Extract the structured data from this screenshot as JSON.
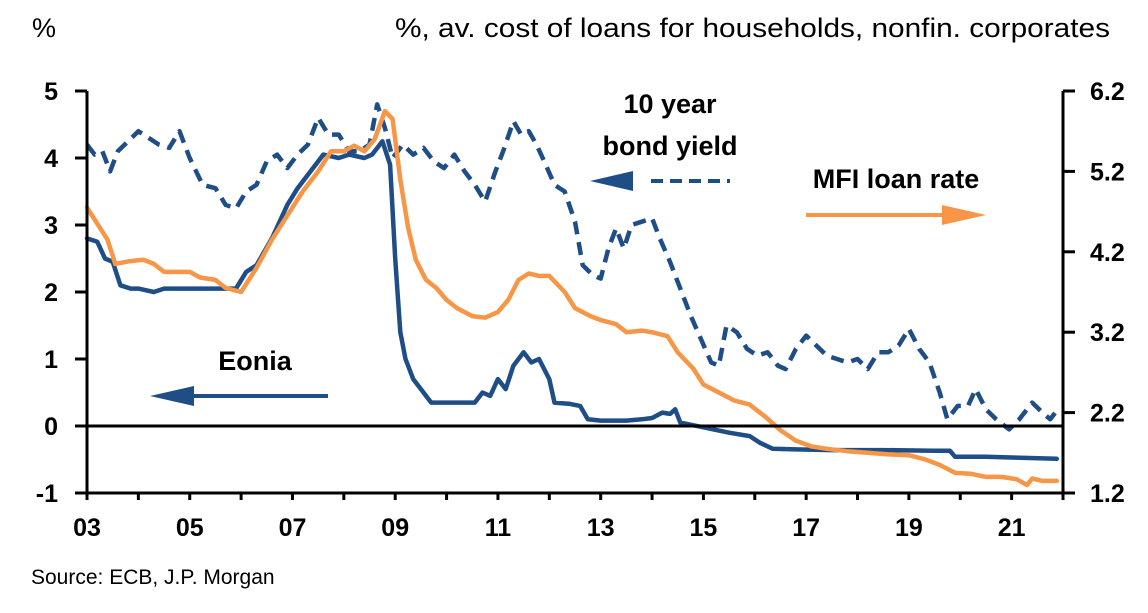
{
  "chart_data": {
    "type": "line",
    "title": "",
    "left_axis_label": "%",
    "right_axis_label": "%, av. cost of loans for households, nonfin. corporates",
    "source": "Source: ECB, J.P. Morgan",
    "xlim": [
      2003.0,
      2022.0
    ],
    "ylim_left": [
      -1,
      5
    ],
    "ylim_right": [
      1.2,
      6.2
    ],
    "x_ticks": [
      2003,
      2004,
      2005,
      2006,
      2007,
      2008,
      2009,
      2010,
      2011,
      2012,
      2013,
      2014,
      2015,
      2016,
      2017,
      2018,
      2019,
      2020,
      2021,
      2022
    ],
    "x_tick_labels": [
      {
        "x": 2003,
        "label": "03"
      },
      {
        "x": 2005,
        "label": "05"
      },
      {
        "x": 2007,
        "label": "07"
      },
      {
        "x": 2009,
        "label": "09"
      },
      {
        "x": 2011,
        "label": "11"
      },
      {
        "x": 2013,
        "label": "13"
      },
      {
        "x": 2015,
        "label": "15"
      },
      {
        "x": 2017,
        "label": "17"
      },
      {
        "x": 2019,
        "label": "19"
      },
      {
        "x": 2021,
        "label": "21"
      }
    ],
    "left_ticks": [
      {
        "v": 5,
        "label": "5"
      },
      {
        "v": 4,
        "label": "4"
      },
      {
        "v": 3,
        "label": "3"
      },
      {
        "v": 2,
        "label": "2"
      },
      {
        "v": 1,
        "label": "1"
      },
      {
        "v": 0,
        "label": "0"
      },
      {
        "v": -1,
        "label": "-1"
      }
    ],
    "right_ticks": [
      {
        "v": 6.2,
        "label": "6.2"
      },
      {
        "v": 5.2,
        "label": "5.2"
      },
      {
        "v": 4.2,
        "label": "4.2"
      },
      {
        "v": 3.2,
        "label": "3.2"
      },
      {
        "v": 2.2,
        "label": "2.2"
      },
      {
        "v": 1.2,
        "label": "1.2"
      }
    ],
    "zero_line": 0,
    "series": [
      {
        "name": "10 year bond yield",
        "axis": "left",
        "style": "dashed",
        "color": "#1f4e87",
        "points": [
          [
            2003.0,
            4.2
          ],
          [
            2003.15,
            4.05
          ],
          [
            2003.3,
            4.1
          ],
          [
            2003.45,
            3.8
          ],
          [
            2003.6,
            4.1
          ],
          [
            2003.8,
            4.25
          ],
          [
            2004.0,
            4.4
          ],
          [
            2004.2,
            4.3
          ],
          [
            2004.4,
            4.2
          ],
          [
            2004.6,
            4.15
          ],
          [
            2004.8,
            4.4
          ],
          [
            2005.0,
            4.0
          ],
          [
            2005.25,
            3.6
          ],
          [
            2005.5,
            3.55
          ],
          [
            2005.7,
            3.3
          ],
          [
            2005.9,
            3.25
          ],
          [
            2006.1,
            3.5
          ],
          [
            2006.3,
            3.6
          ],
          [
            2006.5,
            3.95
          ],
          [
            2006.7,
            4.05
          ],
          [
            2006.9,
            3.85
          ],
          [
            2007.1,
            4.05
          ],
          [
            2007.3,
            4.2
          ],
          [
            2007.5,
            4.6
          ],
          [
            2007.7,
            4.35
          ],
          [
            2007.9,
            4.35
          ],
          [
            2008.1,
            4.1
          ],
          [
            2008.3,
            4.1
          ],
          [
            2008.5,
            4.2
          ],
          [
            2008.65,
            4.8
          ],
          [
            2008.8,
            4.45
          ],
          [
            2008.95,
            4.0
          ],
          [
            2009.15,
            4.2
          ],
          [
            2009.35,
            4.05
          ],
          [
            2009.55,
            4.15
          ],
          [
            2009.75,
            3.95
          ],
          [
            2009.95,
            3.85
          ],
          [
            2010.15,
            4.05
          ],
          [
            2010.35,
            3.8
          ],
          [
            2010.55,
            3.6
          ],
          [
            2010.75,
            3.35
          ],
          [
            2010.95,
            3.8
          ],
          [
            2011.1,
            4.1
          ],
          [
            2011.3,
            4.55
          ],
          [
            2011.45,
            4.35
          ],
          [
            2011.6,
            4.4
          ],
          [
            2011.75,
            4.2
          ],
          [
            2011.9,
            3.95
          ],
          [
            2012.1,
            3.6
          ],
          [
            2012.3,
            3.5
          ],
          [
            2012.5,
            3.05
          ],
          [
            2012.65,
            2.4
          ],
          [
            2012.85,
            2.25
          ],
          [
            2013.0,
            2.2
          ],
          [
            2013.15,
            2.65
          ],
          [
            2013.3,
            2.95
          ],
          [
            2013.45,
            2.65
          ],
          [
            2013.6,
            3.0
          ],
          [
            2013.8,
            3.05
          ],
          [
            2014.0,
            3.1
          ],
          [
            2014.15,
            2.8
          ],
          [
            2014.35,
            2.45
          ],
          [
            2014.55,
            2.05
          ],
          [
            2014.75,
            1.65
          ],
          [
            2014.95,
            1.3
          ],
          [
            2015.15,
            0.95
          ],
          [
            2015.3,
            0.9
          ],
          [
            2015.45,
            1.5
          ],
          [
            2015.65,
            1.4
          ],
          [
            2015.85,
            1.15
          ],
          [
            2016.05,
            1.05
          ],
          [
            2016.25,
            1.1
          ],
          [
            2016.45,
            0.9
          ],
          [
            2016.6,
            0.85
          ],
          [
            2016.8,
            1.15
          ],
          [
            2017.0,
            1.35
          ],
          [
            2017.2,
            1.2
          ],
          [
            2017.4,
            1.05
          ],
          [
            2017.6,
            1.0
          ],
          [
            2017.8,
            0.95
          ],
          [
            2018.0,
            1.0
          ],
          [
            2018.2,
            0.85
          ],
          [
            2018.4,
            1.1
          ],
          [
            2018.6,
            1.1
          ],
          [
            2018.8,
            1.2
          ],
          [
            2019.0,
            1.45
          ],
          [
            2019.2,
            1.15
          ],
          [
            2019.4,
            0.95
          ],
          [
            2019.6,
            0.5
          ],
          [
            2019.75,
            0.1
          ],
          [
            2019.95,
            0.3
          ],
          [
            2020.15,
            0.3
          ],
          [
            2020.3,
            0.55
          ],
          [
            2020.5,
            0.25
          ],
          [
            2020.7,
            0.1
          ],
          [
            2020.95,
            -0.05
          ],
          [
            2021.15,
            0.1
          ],
          [
            2021.4,
            0.35
          ],
          [
            2021.6,
            0.2
          ],
          [
            2021.75,
            0.1
          ],
          [
            2021.85,
            0.2
          ]
        ]
      },
      {
        "name": "Eonia",
        "axis": "left",
        "style": "solid",
        "color": "#1f4e87",
        "points": [
          [
            2003.0,
            2.8
          ],
          [
            2003.2,
            2.75
          ],
          [
            2003.35,
            2.5
          ],
          [
            2003.5,
            2.45
          ],
          [
            2003.65,
            2.1
          ],
          [
            2003.85,
            2.05
          ],
          [
            2004.0,
            2.05
          ],
          [
            2004.3,
            2.0
          ],
          [
            2004.5,
            2.05
          ],
          [
            2004.8,
            2.05
          ],
          [
            2005.0,
            2.05
          ],
          [
            2005.3,
            2.05
          ],
          [
            2005.6,
            2.05
          ],
          [
            2005.9,
            2.05
          ],
          [
            2006.1,
            2.3
          ],
          [
            2006.3,
            2.4
          ],
          [
            2006.6,
            2.8
          ],
          [
            2006.9,
            3.3
          ],
          [
            2007.1,
            3.55
          ],
          [
            2007.4,
            3.85
          ],
          [
            2007.6,
            4.05
          ],
          [
            2007.9,
            4.0
          ],
          [
            2008.1,
            4.05
          ],
          [
            2008.4,
            4.0
          ],
          [
            2008.55,
            4.05
          ],
          [
            2008.75,
            4.25
          ],
          [
            2008.9,
            3.9
          ],
          [
            2009.0,
            2.5
          ],
          [
            2009.1,
            1.4
          ],
          [
            2009.2,
            1.0
          ],
          [
            2009.35,
            0.7
          ],
          [
            2009.5,
            0.55
          ],
          [
            2009.7,
            0.35
          ],
          [
            2010.0,
            0.35
          ],
          [
            2010.3,
            0.35
          ],
          [
            2010.55,
            0.35
          ],
          [
            2010.7,
            0.5
          ],
          [
            2010.85,
            0.45
          ],
          [
            2011.0,
            0.7
          ],
          [
            2011.15,
            0.55
          ],
          [
            2011.3,
            0.9
          ],
          [
            2011.5,
            1.1
          ],
          [
            2011.65,
            0.95
          ],
          [
            2011.8,
            1.0
          ],
          [
            2012.0,
            0.7
          ],
          [
            2012.1,
            0.35
          ],
          [
            2012.4,
            0.33
          ],
          [
            2012.6,
            0.3
          ],
          [
            2012.75,
            0.1
          ],
          [
            2013.0,
            0.08
          ],
          [
            2013.5,
            0.08
          ],
          [
            2013.8,
            0.1
          ],
          [
            2014.0,
            0.12
          ],
          [
            2014.2,
            0.2
          ],
          [
            2014.35,
            0.18
          ],
          [
            2014.45,
            0.25
          ],
          [
            2014.55,
            0.05
          ],
          [
            2015.0,
            -0.02
          ],
          [
            2015.5,
            -0.1
          ],
          [
            2015.9,
            -0.15
          ],
          [
            2016.1,
            -0.25
          ],
          [
            2016.35,
            -0.34
          ],
          [
            2016.8,
            -0.35
          ],
          [
            2017.5,
            -0.36
          ],
          [
            2018.5,
            -0.36
          ],
          [
            2019.5,
            -0.37
          ],
          [
            2019.8,
            -0.37
          ],
          [
            2019.9,
            -0.46
          ],
          [
            2020.5,
            -0.46
          ],
          [
            2021.0,
            -0.47
          ],
          [
            2021.88,
            -0.49
          ]
        ]
      },
      {
        "name": "MFI loan rate",
        "axis": "right",
        "style": "solid",
        "color": "#f79646",
        "points": [
          [
            2003.0,
            4.75
          ],
          [
            2003.2,
            4.55
          ],
          [
            2003.4,
            4.35
          ],
          [
            2003.55,
            4.05
          ],
          [
            2003.8,
            4.08
          ],
          [
            2004.1,
            4.1
          ],
          [
            2004.3,
            4.05
          ],
          [
            2004.5,
            3.95
          ],
          [
            2004.8,
            3.95
          ],
          [
            2005.0,
            3.95
          ],
          [
            2005.2,
            3.88
          ],
          [
            2005.5,
            3.85
          ],
          [
            2005.7,
            3.75
          ],
          [
            2006.0,
            3.7
          ],
          [
            2006.3,
            4.0
          ],
          [
            2006.6,
            4.35
          ],
          [
            2006.9,
            4.65
          ],
          [
            2007.2,
            4.95
          ],
          [
            2007.5,
            5.2
          ],
          [
            2007.75,
            5.45
          ],
          [
            2008.0,
            5.45
          ],
          [
            2008.2,
            5.52
          ],
          [
            2008.4,
            5.45
          ],
          [
            2008.6,
            5.6
          ],
          [
            2008.8,
            5.95
          ],
          [
            2008.95,
            5.85
          ],
          [
            2009.1,
            5.1
          ],
          [
            2009.25,
            4.5
          ],
          [
            2009.4,
            4.1
          ],
          [
            2009.6,
            3.85
          ],
          [
            2009.8,
            3.75
          ],
          [
            2010.0,
            3.6
          ],
          [
            2010.2,
            3.5
          ],
          [
            2010.5,
            3.4
          ],
          [
            2010.75,
            3.38
          ],
          [
            2011.0,
            3.45
          ],
          [
            2011.2,
            3.6
          ],
          [
            2011.4,
            3.85
          ],
          [
            2011.6,
            3.93
          ],
          [
            2011.8,
            3.9
          ],
          [
            2012.0,
            3.9
          ],
          [
            2012.3,
            3.7
          ],
          [
            2012.5,
            3.5
          ],
          [
            2012.8,
            3.4
          ],
          [
            2013.0,
            3.35
          ],
          [
            2013.3,
            3.3
          ],
          [
            2013.5,
            3.2
          ],
          [
            2013.8,
            3.22
          ],
          [
            2014.0,
            3.2
          ],
          [
            2014.3,
            3.15
          ],
          [
            2014.5,
            2.95
          ],
          [
            2014.8,
            2.75
          ],
          [
            2015.0,
            2.55
          ],
          [
            2015.3,
            2.45
          ],
          [
            2015.6,
            2.35
          ],
          [
            2015.9,
            2.3
          ],
          [
            2016.2,
            2.15
          ],
          [
            2016.5,
            1.98
          ],
          [
            2016.8,
            1.85
          ],
          [
            2017.1,
            1.78
          ],
          [
            2017.4,
            1.75
          ],
          [
            2017.8,
            1.72
          ],
          [
            2018.2,
            1.7
          ],
          [
            2018.6,
            1.68
          ],
          [
            2019.0,
            1.67
          ],
          [
            2019.3,
            1.62
          ],
          [
            2019.6,
            1.55
          ],
          [
            2019.9,
            1.45
          ],
          [
            2020.2,
            1.44
          ],
          [
            2020.5,
            1.4
          ],
          [
            2020.8,
            1.4
          ],
          [
            2021.1,
            1.37
          ],
          [
            2021.3,
            1.3
          ],
          [
            2021.4,
            1.38
          ],
          [
            2021.6,
            1.35
          ],
          [
            2021.88,
            1.35
          ]
        ]
      }
    ],
    "annotations": [
      {
        "text_lines": [
          "10 year",
          "bond yield"
        ],
        "arrow": "left",
        "arrow_style": "dashed",
        "color": "#1f4e87"
      },
      {
        "text_lines": [
          "MFI loan rate"
        ],
        "arrow": "right",
        "arrow_style": "solid",
        "color": "#f79646"
      },
      {
        "text_lines": [
          "Eonia"
        ],
        "arrow": "left",
        "arrow_style": "solid",
        "color": "#1f4e87"
      }
    ],
    "grid": false,
    "colors": {
      "navy": "#1f4e87",
      "orange": "#f79646",
      "axis": "#000000"
    }
  }
}
